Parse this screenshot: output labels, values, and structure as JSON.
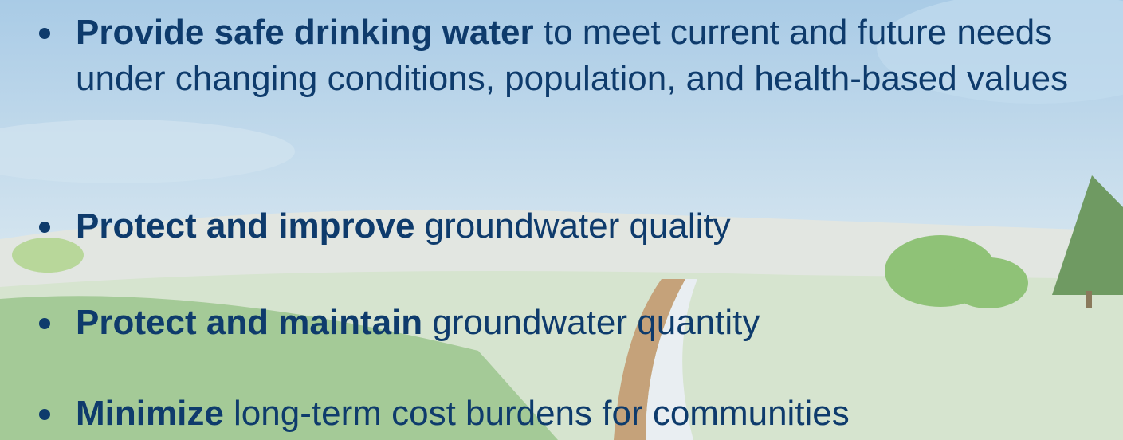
{
  "bullets": [
    {
      "bold": "Provide safe drinking water",
      "text": "to meet current and future needs under changing conditions, population, and health-based values"
    },
    {
      "bold": "Protect and improve",
      "text": "groundwater quality"
    },
    {
      "bold": "Protect and maintain",
      "text": "groundwater quantity"
    },
    {
      "bold": "Minimize",
      "text": "long-term cost burdens for communities"
    }
  ]
}
